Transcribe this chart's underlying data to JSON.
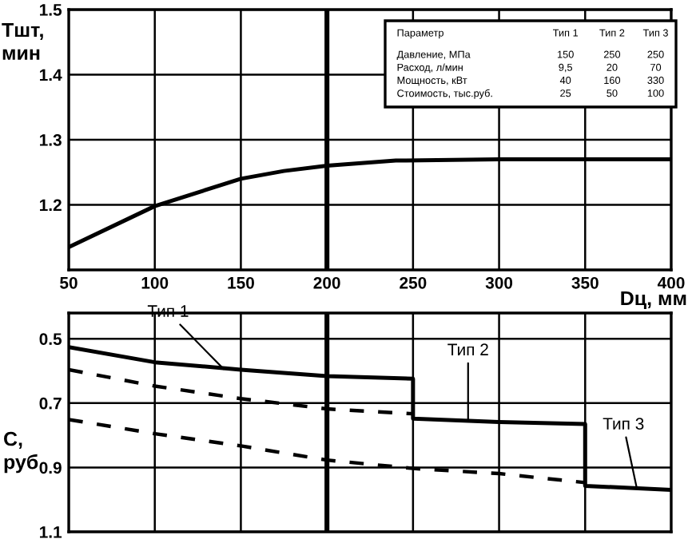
{
  "chart_data": [
    {
      "type": "line",
      "xlabel": "Dц, мм",
      "ylabel": "Тшт,\nмин",
      "xlim": [
        50,
        400
      ],
      "xticks": [
        50,
        100,
        150,
        200,
        250,
        300,
        350,
        400
      ],
      "ylim": [
        1.1,
        1.5
      ],
      "yticks": [
        1.2,
        1.3,
        1.4,
        1.5
      ],
      "grid": true,
      "marker": "none",
      "series": [
        {
          "color": "#000000",
          "line_style": "solid",
          "x": [
            50,
            100,
            150,
            175,
            200,
            240,
            300,
            350,
            400
          ],
          "values": [
            1.135,
            1.198,
            1.24,
            1.252,
            1.26,
            1.268,
            1.27,
            1.27,
            1.27
          ]
        }
      ],
      "ref_lines": [
        {
          "axis": "x",
          "value": 200,
          "color": "#000000"
        }
      ]
    },
    {
      "type": "line",
      "ylabel": "С,\nруб",
      "xlim": [
        50,
        400
      ],
      "ylim": [
        1.1,
        0.42
      ],
      "yticks": [
        0.5,
        0.7,
        0.9,
        1.1
      ],
      "tick_labels": "y",
      "grid": true,
      "marker": "none",
      "series": [
        {
          "color": "#000000",
          "line_style": "solid",
          "x": [
            50,
            100,
            150,
            200,
            250,
            250,
            300,
            350,
            350,
            400
          ],
          "values": [
            0.526,
            0.573,
            0.596,
            0.616,
            0.624,
            0.748,
            0.759,
            0.765,
            0.957,
            0.97
          ]
        },
        {
          "color": "#000000",
          "line_style": "dashed",
          "x": [
            50,
            100,
            150,
            200,
            250
          ],
          "values": [
            0.596,
            0.647,
            0.686,
            0.718,
            0.733
          ]
        },
        {
          "color": "#000000",
          "line_style": "dashed",
          "x": [
            50,
            100,
            150,
            200,
            250,
            300,
            350
          ],
          "values": [
            0.751,
            0.795,
            0.833,
            0.877,
            0.903,
            0.919,
            0.947
          ]
        }
      ],
      "annotations": [
        {
          "text": "Тип 1",
          "x": 140,
          "y": 0.594
        },
        {
          "text": "Тип 2",
          "x": 282,
          "y": 0.755
        },
        {
          "text": "Тип 3",
          "x": 380,
          "y": 0.965
        }
      ],
      "ref_lines": [
        {
          "axis": "x",
          "value": 200,
          "color": "#000000"
        }
      ]
    },
    {
      "type": "other",
      "categories": [
        "Параметр",
        "Тип 1",
        "Тип 2",
        "Тип 3"
      ],
      "y_categories": [
        "Давление, МПа",
        "Расход, л/мин",
        "Мощность, кВт",
        "Стоимость, тыс.руб."
      ],
      "cell_labels": [
        [
          "150",
          "250",
          "250"
        ],
        [
          "9,5",
          "20",
          "70"
        ],
        [
          "40",
          "160",
          "330"
        ],
        [
          "25",
          "50",
          "100"
        ]
      ]
    }
  ]
}
